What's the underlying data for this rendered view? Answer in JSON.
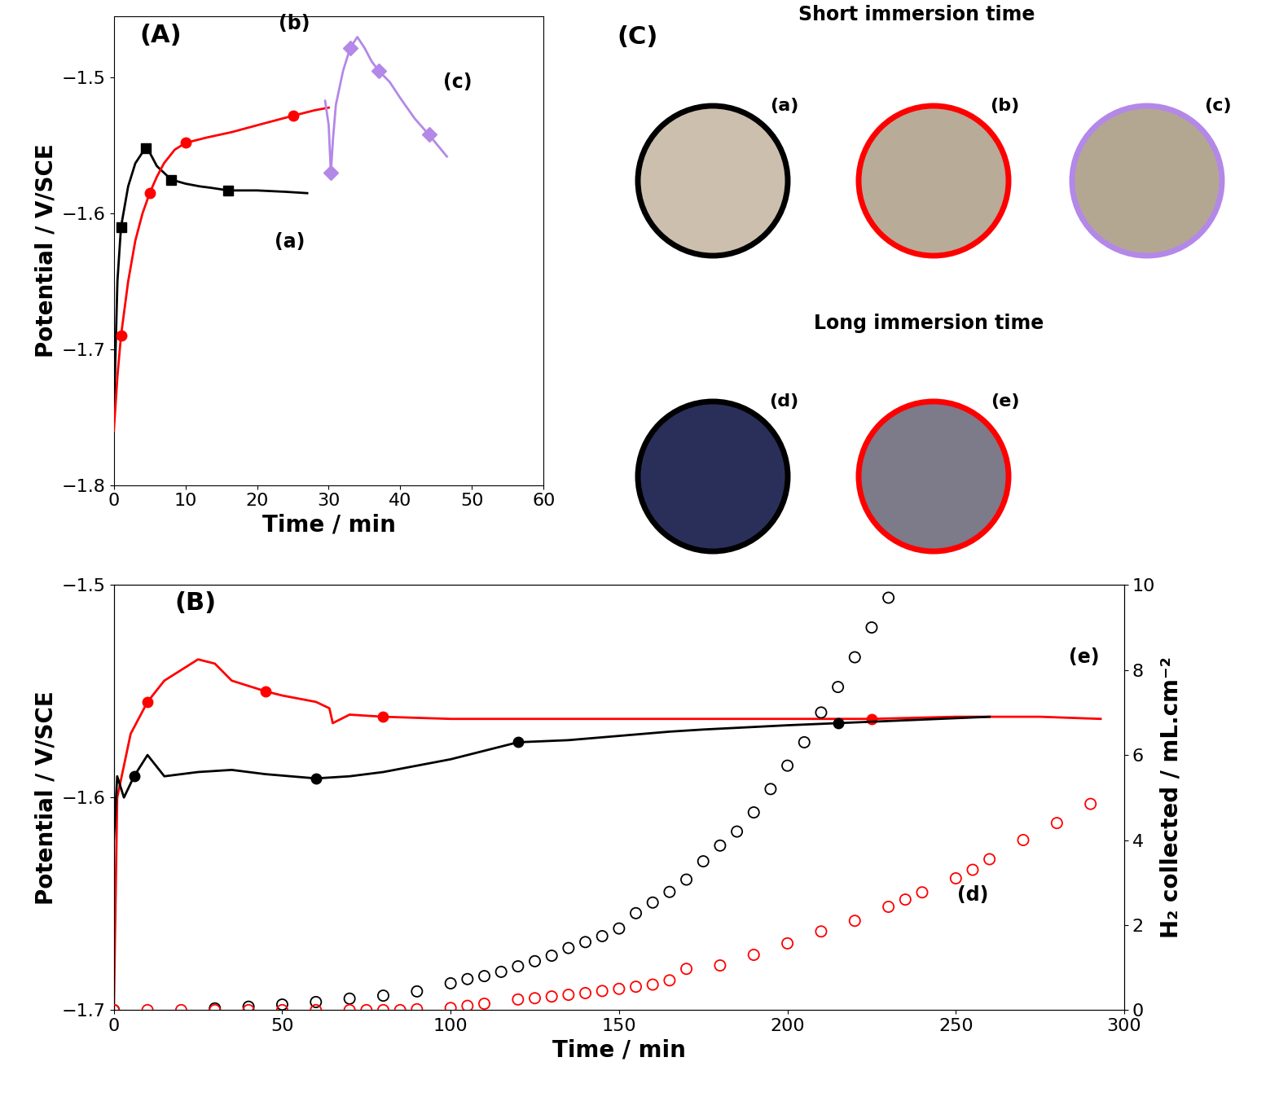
{
  "chart_data": [
    {
      "type": "line",
      "label": "(A)",
      "x_label": "Time / min",
      "y_label": "Potential / V/SCE",
      "xlim": [
        0,
        60
      ],
      "xticks": [
        0,
        10,
        20,
        30,
        40,
        50,
        60
      ],
      "ylim": [
        -1.8,
        -1.455
      ],
      "yticks": [
        {
          "value": -1.8,
          "label": "−1.8"
        },
        {
          "value": -1.7,
          "label": "−1.7"
        },
        {
          "value": -1.6,
          "label": "−1.6"
        },
        {
          "value": -1.5,
          "label": "−1.5"
        }
      ],
      "grid": false,
      "series": [
        {
          "label": "(a)",
          "color": "#000000",
          "marker": "s",
          "x": [
            0,
            0.5,
            1,
            2,
            3,
            4,
            4.5,
            5,
            6,
            7,
            8,
            10,
            12,
            13.5,
            16,
            20,
            24,
            27
          ],
          "values": [
            -1.75,
            -1.65,
            -1.61,
            -1.58,
            -1.563,
            -1.555,
            -1.552,
            -1.555,
            -1.565,
            -1.57,
            -1.575,
            -1.578,
            -1.58,
            -1.581,
            -1.583,
            -1.583,
            -1.584,
            -1.585
          ]
        },
        {
          "label": "(b)",
          "color": "#ff0000",
          "marker": "o",
          "x": [
            0,
            0.5,
            1,
            2,
            3,
            4,
            5,
            6,
            7,
            8.5,
            10,
            13,
            16.5,
            20,
            25,
            28,
            30
          ],
          "values": [
            -1.76,
            -1.72,
            -1.69,
            -1.65,
            -1.62,
            -1.6,
            -1.585,
            -1.573,
            -1.563,
            -1.553,
            -1.548,
            -1.544,
            -1.54,
            -1.535,
            -1.528,
            -1.524,
            -1.522
          ]
        },
        {
          "label": "(c)",
          "color": "#b388e8",
          "marker": "D",
          "x": [
            29.5,
            30,
            30.3,
            30.6,
            31,
            32,
            33,
            34,
            35,
            36,
            37,
            38.5,
            40,
            42,
            44,
            46.5
          ],
          "values": [
            -1.517,
            -1.535,
            -1.57,
            -1.545,
            -1.52,
            -1.495,
            -1.478,
            -1.47,
            -1.478,
            -1.488,
            -1.495,
            -1.503,
            -1.515,
            -1.53,
            -1.542,
            -1.558
          ]
        }
      ]
    },
    {
      "type": "line",
      "label": "(B)",
      "x_label": "Time / min",
      "y_label": "Potential / V/SCE",
      "y2_label": "H₂ collected / mL.cm⁻²",
      "xlim": [
        0,
        300
      ],
      "xticks": [
        0,
        50,
        100,
        150,
        200,
        250,
        300
      ],
      "ylim": [
        -1.7,
        -1.5
      ],
      "yticks": [
        {
          "value": -1.7,
          "label": "−1.7"
        },
        {
          "value": -1.6,
          "label": "−1.6"
        },
        {
          "value": -1.5,
          "label": "−1.5"
        }
      ],
      "y2lim": [
        0,
        10
      ],
      "y2ticks": [
        0,
        2,
        4,
        6,
        8,
        10
      ],
      "grid": false,
      "series": [
        {
          "label": "(e)",
          "color": "#ff0000",
          "marker": "o",
          "type": "line",
          "x": [
            0,
            1,
            5,
            10,
            15,
            20,
            25,
            30,
            35,
            45,
            50,
            60,
            64,
            65,
            70,
            80,
            100,
            125,
            150,
            175,
            200,
            225,
            250,
            275,
            293
          ],
          "values": [
            -1.7,
            -1.6,
            -1.57,
            -1.555,
            -1.545,
            -1.54,
            -1.535,
            -1.537,
            -1.545,
            -1.55,
            -1.552,
            -1.555,
            -1.558,
            -1.565,
            -1.561,
            -1.562,
            -1.563,
            -1.563,
            -1.563,
            -1.563,
            -1.563,
            -1.563,
            -1.562,
            -1.562,
            -1.563
          ]
        },
        {
          "label": "(d)",
          "color": "#000000",
          "marker": "o",
          "type": "line",
          "x": [
            0,
            1,
            3,
            6,
            10,
            15,
            25,
            35,
            45,
            60,
            70,
            80,
            90,
            100,
            110,
            120,
            135,
            150,
            165,
            175,
            200,
            215,
            230,
            245,
            260
          ],
          "values": [
            -1.62,
            -1.59,
            -1.6,
            -1.59,
            -1.58,
            -1.59,
            -1.588,
            -1.587,
            -1.589,
            -1.591,
            -1.59,
            -1.588,
            -1.585,
            -1.582,
            -1.578,
            -1.574,
            -1.573,
            -1.571,
            -1.569,
            -1.568,
            -1.566,
            -1.565,
            -1.564,
            -1.563,
            -1.562
          ]
        },
        {
          "color": "#000000",
          "marker": "o",
          "type": "scatter",
          "axis": "y2",
          "x": [
            0,
            30,
            40,
            50,
            60,
            70,
            80,
            90,
            100,
            105,
            110,
            115,
            120,
            125,
            130,
            135,
            140,
            145,
            150,
            155,
            160,
            165,
            170,
            175,
            180,
            185,
            190,
            195,
            200,
            205,
            210,
            215,
            220,
            225,
            230
          ],
          "values": [
            0,
            0.04,
            0.08,
            0.13,
            0.19,
            0.27,
            0.34,
            0.44,
            0.63,
            0.73,
            0.8,
            0.9,
            1.03,
            1.15,
            1.28,
            1.46,
            1.6,
            1.74,
            1.92,
            2.28,
            2.53,
            2.78,
            3.07,
            3.5,
            3.87,
            4.2,
            4.65,
            5.2,
            5.75,
            6.3,
            7.0,
            7.6,
            8.3,
            9.0,
            9.7
          ]
        },
        {
          "color": "#ff0000",
          "marker": "o",
          "type": "scatter",
          "axis": "y2",
          "x": [
            0,
            10,
            20,
            30,
            40,
            50,
            60,
            70,
            75,
            80,
            85,
            90,
            100,
            105,
            110,
            120,
            125,
            130,
            135,
            140,
            145,
            150,
            155,
            160,
            165,
            170,
            180,
            190,
            200,
            210,
            220,
            230,
            235,
            240,
            250,
            255,
            260,
            270,
            280,
            290
          ],
          "values": [
            0,
            0,
            0,
            0,
            0,
            0,
            0,
            0,
            0,
            0,
            0,
            0.02,
            0.05,
            0.1,
            0.15,
            0.25,
            0.28,
            0.32,
            0.36,
            0.4,
            0.45,
            0.5,
            0.55,
            0.6,
            0.7,
            0.97,
            1.05,
            1.3,
            1.57,
            1.85,
            2.1,
            2.43,
            2.6,
            2.77,
            3.1,
            3.3,
            3.55,
            4.0,
            4.4,
            4.85
          ]
        }
      ]
    }
  ],
  "photos": {
    "label": "(C)",
    "groups": [
      {
        "title": "Short immersion time",
        "items": [
          {
            "label": "(a)",
            "color": "#000000"
          },
          {
            "label": "(b)",
            "color": "#ff0000"
          },
          {
            "label": "(c)",
            "color": "#b388e8"
          }
        ]
      },
      {
        "title": "Long immersion time",
        "items": [
          {
            "label": "(d)",
            "color": "#000000"
          },
          {
            "label": "(e)",
            "color": "#ff0000"
          }
        ]
      }
    ]
  }
}
